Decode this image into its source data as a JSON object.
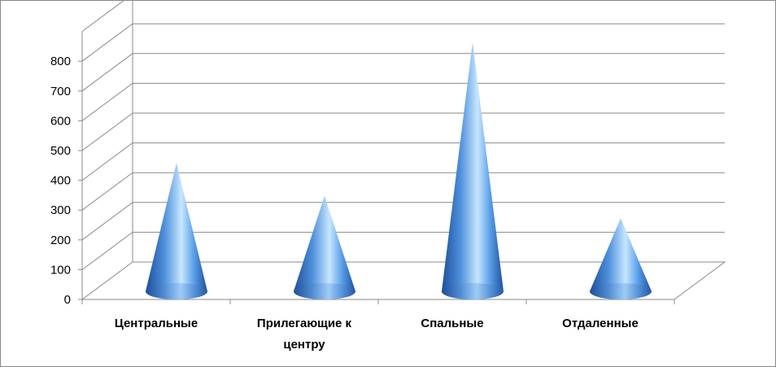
{
  "chart_data": {
    "type": "bar",
    "bar_shape": "cone-3d",
    "title": "",
    "xlabel": "",
    "ylabel": "",
    "categories": [
      "Центральные",
      "Прилегающие к центру",
      "Спальные",
      "Отдаленные"
    ],
    "values": [
      395,
      285,
      800,
      210
    ],
    "ylim": [
      0,
      900
    ],
    "y_ticks": [
      0,
      100,
      200,
      300,
      400,
      500,
      600,
      700,
      800
    ],
    "grid": true,
    "legend": "none",
    "colors": {
      "cone_light": "#c6e6ff",
      "cone_mid": "#5aa0e8",
      "cone_dark": "#1d4f9c",
      "grid": "#898989"
    }
  }
}
